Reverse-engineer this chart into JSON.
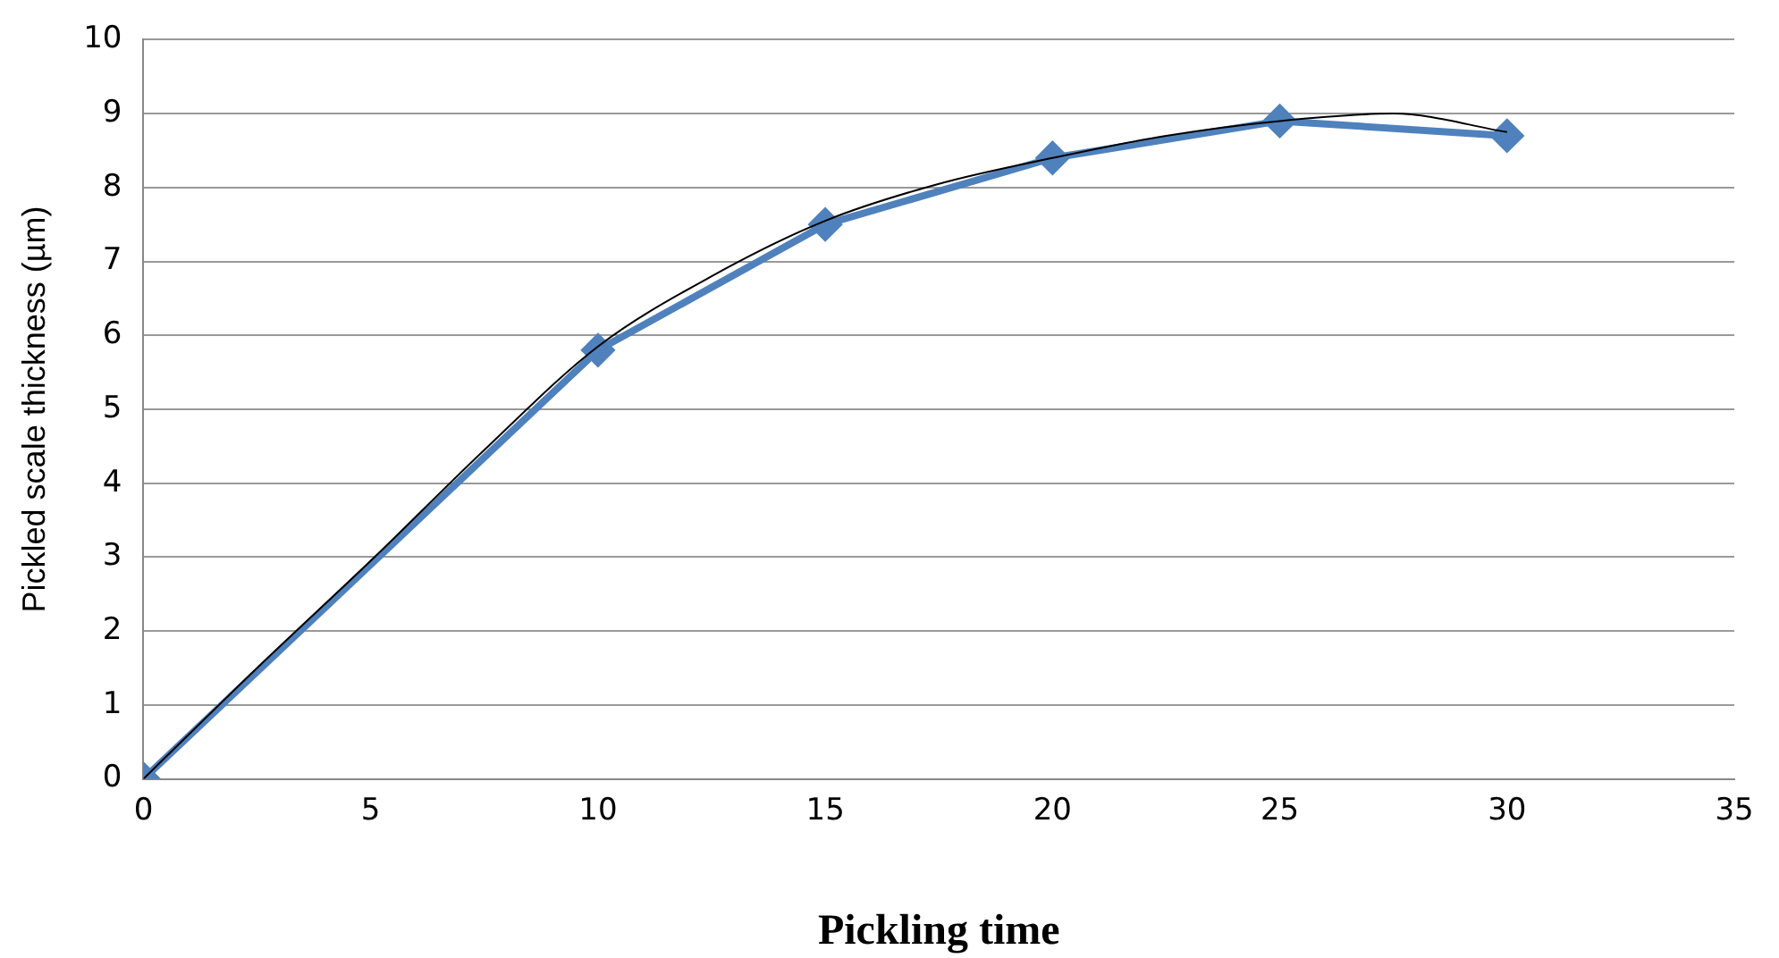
{
  "chart_data": {
    "type": "line",
    "xlabel": "Pickling time",
    "ylabel": "Pickled scale thickness (µm)",
    "xlim": [
      0,
      35
    ],
    "xticks": [
      0,
      5,
      10,
      15,
      20,
      25,
      30,
      35
    ],
    "ylim": [
      0,
      10
    ],
    "yticks": [
      0,
      1,
      2,
      3,
      4,
      5,
      6,
      7,
      8,
      9,
      10
    ],
    "grid": "y",
    "legend": false,
    "series": [
      {
        "color": "#4f81bd",
        "marker": "diamond",
        "line_style": "solid",
        "x": [
          0,
          10,
          15,
          20,
          25,
          30
        ],
        "values": [
          0,
          5.8,
          7.5,
          8.4,
          8.9,
          8.7
        ]
      },
      {
        "color": "#000000",
        "marker": "none",
        "line_style": "solid",
        "x": [
          0,
          2.5,
          5,
          7.5,
          10,
          12.5,
          15,
          17.5,
          20,
          22.5,
          25,
          27.5,
          30
        ],
        "values": [
          0,
          1.5,
          2.95,
          4.45,
          5.85,
          6.8,
          7.55,
          8.05,
          8.4,
          8.7,
          8.9,
          9,
          8.75
        ]
      }
    ]
  }
}
